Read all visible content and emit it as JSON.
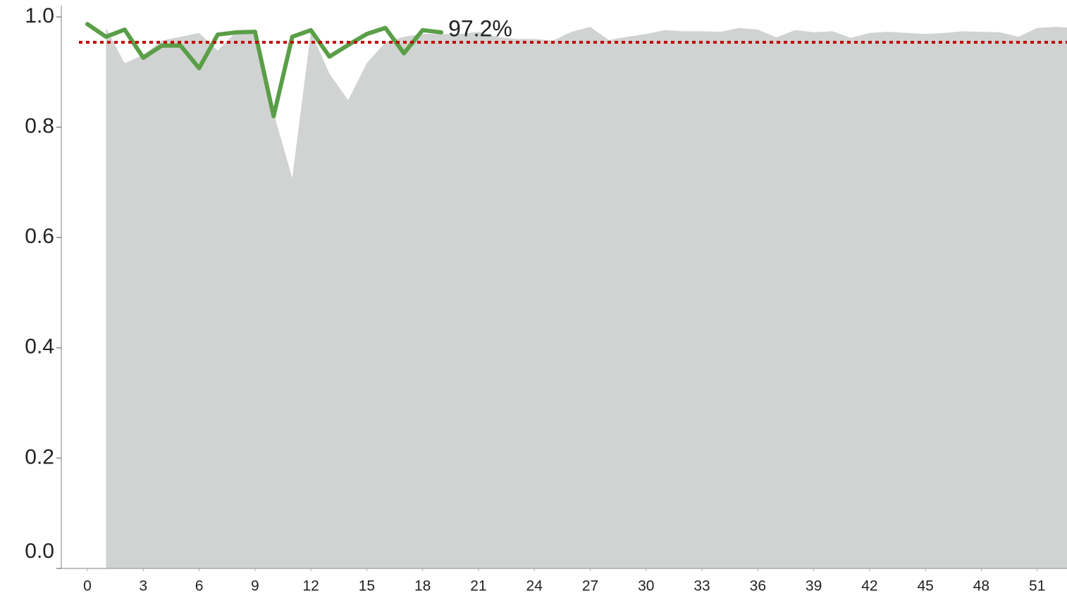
{
  "chart_data": {
    "type": "line",
    "ylim": [
      0,
      1.0
    ],
    "yticks": [
      {
        "value": 0,
        "label": "0.0"
      },
      0.2,
      0.4,
      0.6,
      0.8,
      {
        "value": 1,
        "label": "1.0"
      }
    ],
    "xlim": [
      -1.4,
      52.6
    ],
    "xticks": [
      0,
      3,
      6,
      9,
      12,
      15,
      18,
      21,
      24,
      27,
      30,
      33,
      36,
      39,
      42,
      45,
      48,
      51
    ],
    "grid": false,
    "reference_line": {
      "value": 0.954,
      "color": "#c00000"
    },
    "series": [
      {
        "style": "area",
        "color": "#d0d3d2",
        "x": [
          1,
          2,
          3,
          4,
          5,
          6,
          7,
          8,
          9,
          10,
          11,
          12,
          13,
          14,
          15,
          16,
          17,
          18,
          19,
          20,
          21,
          22,
          23,
          24,
          25,
          26,
          27,
          28,
          29,
          30,
          31,
          32,
          33,
          34,
          35,
          36,
          37,
          38,
          39,
          40,
          41,
          42,
          43,
          44,
          45,
          46,
          47,
          48,
          49,
          50,
          51,
          52,
          53
        ],
        "values": [
          0.98,
          0.916,
          0.931,
          0.957,
          0.964,
          0.971,
          0.939,
          0.973,
          0.971,
          0.826,
          0.708,
          0.973,
          0.897,
          0.849,
          0.916,
          0.954,
          0.964,
          0.969,
          0.969,
          0.969,
          0.973,
          0.964,
          0.96,
          0.96,
          0.957,
          0.973,
          0.982,
          0.958,
          0.964,
          0.969,
          0.976,
          0.974,
          0.974,
          0.973,
          0.98,
          0.977,
          0.963,
          0.976,
          0.972,
          0.974,
          0.962,
          0.971,
          0.973,
          0.971,
          0.969,
          0.971,
          0.974,
          0.973,
          0.972,
          0.964,
          0.98,
          0.982,
          0.98
        ]
      },
      {
        "style": "line",
        "color": "#5a9e47",
        "x": [
          0,
          1,
          2,
          3,
          4,
          5,
          6,
          7,
          8,
          9,
          10,
          11,
          12,
          13,
          14,
          15,
          16,
          17,
          18,
          19
        ],
        "values": [
          0.987,
          0.964,
          0.977,
          0.926,
          0.948,
          0.948,
          0.907,
          0.968,
          0.972,
          0.973,
          0.82,
          0.964,
          0.976,
          0.928,
          0.949,
          0.969,
          0.98,
          0.934,
          0.976,
          0.972
        ],
        "value_labels": [
          null,
          null,
          null,
          null,
          null,
          null,
          null,
          null,
          null,
          null,
          null,
          null,
          null,
          null,
          null,
          null,
          null,
          null,
          null,
          "97.2%"
        ]
      }
    ]
  }
}
